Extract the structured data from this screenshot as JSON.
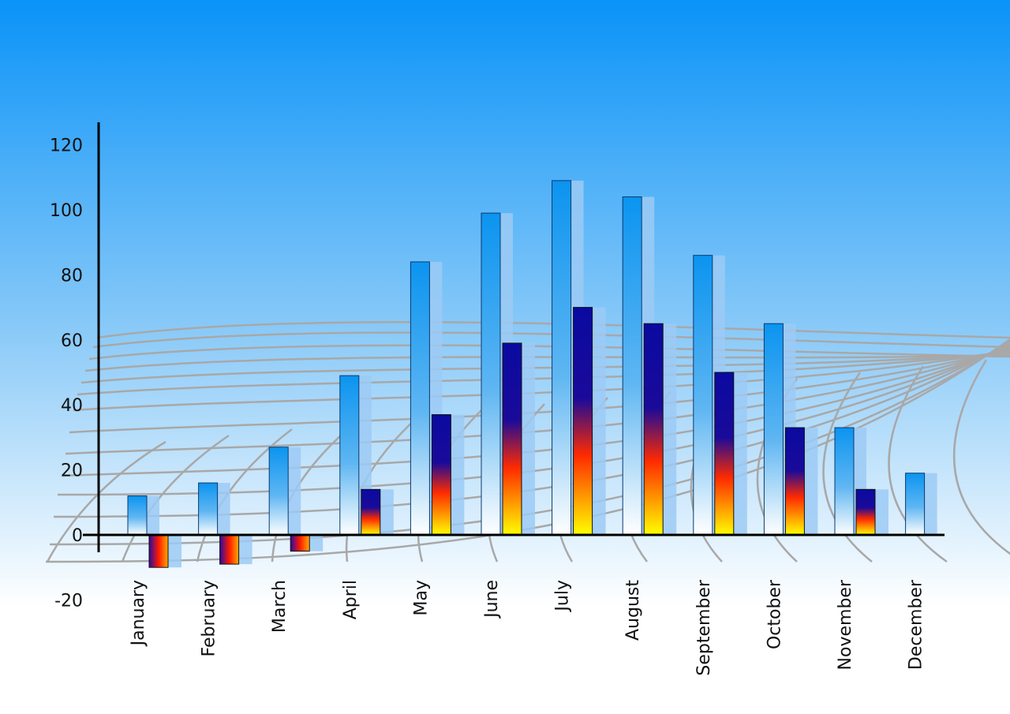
{
  "chart_data": {
    "type": "bar",
    "categories": [
      "January",
      "February",
      "March",
      "April",
      "May",
      "June",
      "July",
      "August",
      "September",
      "October",
      "November",
      "December"
    ],
    "series": [
      {
        "values": [
          12,
          16,
          27,
          49,
          84,
          99,
          109,
          104,
          86,
          65,
          33,
          19
        ]
      },
      {
        "values": [
          -10,
          -9,
          -5,
          14,
          37,
          59,
          70,
          65,
          50,
          33,
          14,
          null
        ]
      }
    ],
    "yticks": [
      "-20",
      "0",
      "20",
      "40",
      "60",
      "80",
      "100",
      "120"
    ],
    "ylim": [
      -20,
      120
    ],
    "xlabel": "",
    "ylabel": "",
    "title": "",
    "grid": false,
    "colors": {
      "background_top": "#0a93f8",
      "background_bottom": "#ffffff",
      "series1": "#1e9af2",
      "series2_top": "#0a0aa0",
      "series2_mid": "#ff2a00",
      "series2_bottom": "#ffff00",
      "shadow": "#9ccaf5",
      "perspective_grid": "#a8a8a8"
    }
  }
}
